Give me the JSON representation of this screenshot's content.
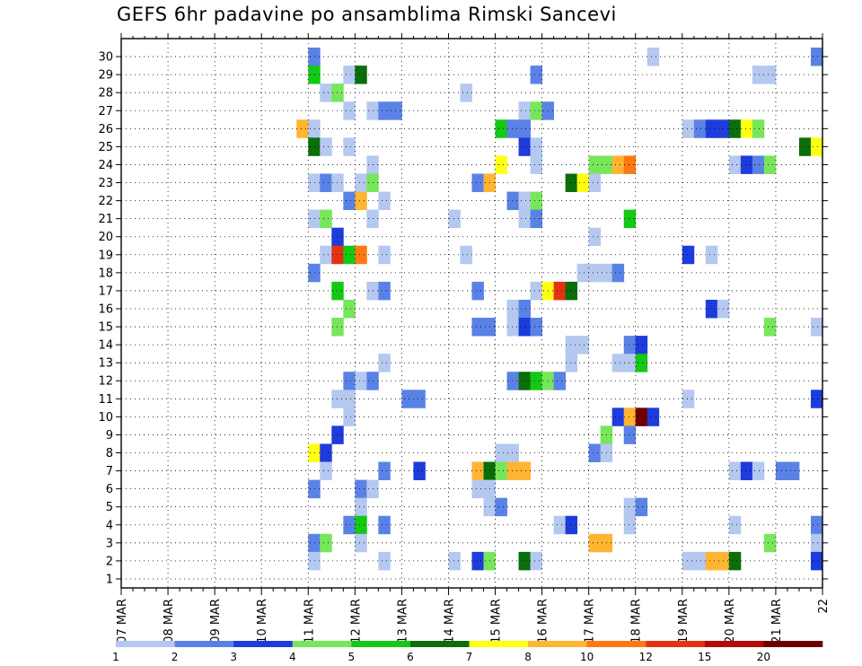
{
  "title": "GEFS 6hr padavine po ansamblima Rimski Sancevi",
  "chart_data": {
    "type": "heatmap",
    "title": "GEFS 6hr padavine po ansamblima Rimski Sancevi",
    "x_tick_labels": [
      "07 MAR",
      "08 MAR",
      "09 MAR",
      "10 MAR",
      "11 MAR",
      "12 MAR",
      "13 MAR",
      "14 MAR",
      "15 MAR",
      "16 MAR",
      "17 MAR",
      "18 MAR",
      "19 MAR",
      "20 MAR",
      "21 MAR",
      "22"
    ],
    "y_tick_labels": [
      "1",
      "2",
      "3",
      "4",
      "5",
      "6",
      "7",
      "8",
      "9",
      "10",
      "11",
      "12",
      "13",
      "14",
      "15",
      "16",
      "17",
      "18",
      "19",
      "20",
      "21",
      "22",
      "23",
      "24",
      "25",
      "26",
      "27",
      "28",
      "29",
      "30"
    ],
    "x_range_days": [
      7,
      22
    ],
    "y_range": [
      1,
      30
    ],
    "time_step_hours": 6,
    "grid": true,
    "legend_position": "bottom",
    "color_levels": {
      "boundaries": [
        "1",
        "2",
        "3",
        "4",
        "5",
        "6",
        "7",
        "8",
        "10",
        "12",
        "15",
        "20"
      ],
      "colors": [
        "#b4c8f0",
        "#5a82e6",
        "#1e3cdc",
        "#78e65a",
        "#14c814",
        "#0a6e0a",
        "#ffff14",
        "#ffb432",
        "#ff7814",
        "#e63214",
        "#b40a0a",
        "#6e0000"
      ]
    },
    "cells": [
      {
        "member": 30,
        "day": 11.0,
        "level": 1
      },
      {
        "member": 30,
        "day": 18.25,
        "level": 0
      },
      {
        "member": 30,
        "day": 21.75,
        "level": 1
      },
      {
        "member": 29,
        "day": 11.0,
        "level": 4
      },
      {
        "member": 29,
        "day": 11.75,
        "level": 0
      },
      {
        "member": 29,
        "day": 12.0,
        "level": 5
      },
      {
        "member": 29,
        "day": 15.75,
        "level": 1
      },
      {
        "member": 29,
        "day": 20.5,
        "level": 0
      },
      {
        "member": 29,
        "day": 20.75,
        "level": 0
      },
      {
        "member": 28,
        "day": 11.25,
        "level": 0
      },
      {
        "member": 28,
        "day": 11.5,
        "level": 3
      },
      {
        "member": 28,
        "day": 14.25,
        "level": 0
      },
      {
        "member": 27,
        "day": 11.75,
        "level": 0
      },
      {
        "member": 27,
        "day": 12.25,
        "level": 0
      },
      {
        "member": 27,
        "day": 12.5,
        "level": 1
      },
      {
        "member": 27,
        "day": 12.75,
        "level": 1
      },
      {
        "member": 27,
        "day": 15.5,
        "level": 0
      },
      {
        "member": 27,
        "day": 15.75,
        "level": 3
      },
      {
        "member": 27,
        "day": 16.0,
        "level": 1
      },
      {
        "member": 26,
        "day": 10.75,
        "level": 7
      },
      {
        "member": 26,
        "day": 11.0,
        "level": 0
      },
      {
        "member": 26,
        "day": 15.0,
        "level": 4
      },
      {
        "member": 26,
        "day": 15.25,
        "level": 1
      },
      {
        "member": 26,
        "day": 15.5,
        "level": 1
      },
      {
        "member": 26,
        "day": 19.0,
        "level": 0
      },
      {
        "member": 26,
        "day": 19.25,
        "level": 1
      },
      {
        "member": 26,
        "day": 19.5,
        "level": 2
      },
      {
        "member": 26,
        "day": 19.75,
        "level": 2
      },
      {
        "member": 26,
        "day": 20.0,
        "level": 5
      },
      {
        "member": 26,
        "day": 20.25,
        "level": 6
      },
      {
        "member": 26,
        "day": 20.5,
        "level": 3
      },
      {
        "member": 25,
        "day": 11.0,
        "level": 5
      },
      {
        "member": 25,
        "day": 11.25,
        "level": 0
      },
      {
        "member": 25,
        "day": 11.75,
        "level": 0
      },
      {
        "member": 25,
        "day": 15.5,
        "level": 2
      },
      {
        "member": 25,
        "day": 15.75,
        "level": 0
      },
      {
        "member": 25,
        "day": 21.5,
        "level": 5
      },
      {
        "member": 25,
        "day": 21.75,
        "level": 6
      },
      {
        "member": 24,
        "day": 12.25,
        "level": 0
      },
      {
        "member": 24,
        "day": 15.0,
        "level": 6
      },
      {
        "member": 24,
        "day": 15.75,
        "level": 0
      },
      {
        "member": 24,
        "day": 17.0,
        "level": 3
      },
      {
        "member": 24,
        "day": 17.25,
        "level": 3
      },
      {
        "member": 24,
        "day": 17.5,
        "level": 7
      },
      {
        "member": 24,
        "day": 17.75,
        "level": 8
      },
      {
        "member": 24,
        "day": 20.0,
        "level": 0
      },
      {
        "member": 24,
        "day": 20.25,
        "level": 2
      },
      {
        "member": 24,
        "day": 20.5,
        "level": 1
      },
      {
        "member": 24,
        "day": 20.75,
        "level": 3
      },
      {
        "member": 23,
        "day": 11.0,
        "level": 0
      },
      {
        "member": 23,
        "day": 11.25,
        "level": 1
      },
      {
        "member": 23,
        "day": 11.5,
        "level": 0
      },
      {
        "member": 23,
        "day": 12.0,
        "level": 0
      },
      {
        "member": 23,
        "day": 12.25,
        "level": 3
      },
      {
        "member": 23,
        "day": 14.5,
        "level": 1
      },
      {
        "member": 23,
        "day": 14.75,
        "level": 7
      },
      {
        "member": 23,
        "day": 16.5,
        "level": 5
      },
      {
        "member": 23,
        "day": 16.75,
        "level": 6
      },
      {
        "member": 23,
        "day": 17.0,
        "level": 0
      },
      {
        "member": 22,
        "day": 11.75,
        "level": 1
      },
      {
        "member": 22,
        "day": 12.0,
        "level": 7
      },
      {
        "member": 22,
        "day": 12.5,
        "level": 0
      },
      {
        "member": 22,
        "day": 15.25,
        "level": 1
      },
      {
        "member": 22,
        "day": 15.5,
        "level": 0
      },
      {
        "member": 22,
        "day": 15.75,
        "level": 3
      },
      {
        "member": 21,
        "day": 11.0,
        "level": 0
      },
      {
        "member": 21,
        "day": 11.25,
        "level": 3
      },
      {
        "member": 21,
        "day": 12.25,
        "level": 0
      },
      {
        "member": 21,
        "day": 14.0,
        "level": 0
      },
      {
        "member": 21,
        "day": 15.5,
        "level": 0
      },
      {
        "member": 21,
        "day": 15.75,
        "level": 1
      },
      {
        "member": 21,
        "day": 17.75,
        "level": 4
      },
      {
        "member": 20,
        "day": 11.5,
        "level": 2
      },
      {
        "member": 20,
        "day": 17.0,
        "level": 0
      },
      {
        "member": 19,
        "day": 11.25,
        "level": 0
      },
      {
        "member": 19,
        "day": 11.5,
        "level": 9
      },
      {
        "member": 19,
        "day": 11.75,
        "level": 4
      },
      {
        "member": 19,
        "day": 12.0,
        "level": 8
      },
      {
        "member": 19,
        "day": 12.5,
        "level": 0
      },
      {
        "member": 19,
        "day": 14.25,
        "level": 0
      },
      {
        "member": 19,
        "day": 19.0,
        "level": 2
      },
      {
        "member": 19,
        "day": 19.5,
        "level": 0
      },
      {
        "member": 18,
        "day": 11.0,
        "level": 1
      },
      {
        "member": 18,
        "day": 16.75,
        "level": 0
      },
      {
        "member": 18,
        "day": 17.0,
        "level": 0
      },
      {
        "member": 18,
        "day": 17.25,
        "level": 0
      },
      {
        "member": 18,
        "day": 17.5,
        "level": 1
      },
      {
        "member": 17,
        "day": 11.5,
        "level": 4
      },
      {
        "member": 17,
        "day": 12.25,
        "level": 0
      },
      {
        "member": 17,
        "day": 12.5,
        "level": 1
      },
      {
        "member": 17,
        "day": 14.5,
        "level": 1
      },
      {
        "member": 17,
        "day": 15.75,
        "level": 0
      },
      {
        "member": 17,
        "day": 16.0,
        "level": 6
      },
      {
        "member": 17,
        "day": 16.25,
        "level": 9
      },
      {
        "member": 17,
        "day": 16.5,
        "level": 5
      },
      {
        "member": 16,
        "day": 11.75,
        "level": 3
      },
      {
        "member": 16,
        "day": 15.25,
        "level": 0
      },
      {
        "member": 16,
        "day": 15.5,
        "level": 1
      },
      {
        "member": 16,
        "day": 19.5,
        "level": 2
      },
      {
        "member": 16,
        "day": 19.75,
        "level": 0
      },
      {
        "member": 15,
        "day": 11.5,
        "level": 3
      },
      {
        "member": 15,
        "day": 14.5,
        "level": 1
      },
      {
        "member": 15,
        "day": 14.75,
        "level": 1
      },
      {
        "member": 15,
        "day": 15.25,
        "level": 0
      },
      {
        "member": 15,
        "day": 15.5,
        "level": 2
      },
      {
        "member": 15,
        "day": 15.75,
        "level": 1
      },
      {
        "member": 15,
        "day": 20.75,
        "level": 3
      },
      {
        "member": 15,
        "day": 21.75,
        "level": 0
      },
      {
        "member": 14,
        "day": 16.5,
        "level": 0
      },
      {
        "member": 14,
        "day": 16.75,
        "level": 0
      },
      {
        "member": 14,
        "day": 17.75,
        "level": 1
      },
      {
        "member": 14,
        "day": 18.0,
        "level": 2
      },
      {
        "member": 13,
        "day": 12.5,
        "level": 0
      },
      {
        "member": 13,
        "day": 16.5,
        "level": 0
      },
      {
        "member": 13,
        "day": 17.5,
        "level": 0
      },
      {
        "member": 13,
        "day": 17.75,
        "level": 0
      },
      {
        "member": 13,
        "day": 18.0,
        "level": 4
      },
      {
        "member": 12,
        "day": 11.75,
        "level": 1
      },
      {
        "member": 12,
        "day": 12.0,
        "level": 0
      },
      {
        "member": 12,
        "day": 12.25,
        "level": 1
      },
      {
        "member": 12,
        "day": 15.25,
        "level": 1
      },
      {
        "member": 12,
        "day": 15.5,
        "level": 5
      },
      {
        "member": 12,
        "day": 15.75,
        "level": 4
      },
      {
        "member": 12,
        "day": 16.0,
        "level": 3
      },
      {
        "member": 12,
        "day": 16.25,
        "level": 1
      },
      {
        "member": 11,
        "day": 11.5,
        "level": 0
      },
      {
        "member": 11,
        "day": 11.75,
        "level": 0
      },
      {
        "member": 11,
        "day": 13.0,
        "level": 1
      },
      {
        "member": 11,
        "day": 13.25,
        "level": 1
      },
      {
        "member": 11,
        "day": 19.0,
        "level": 0
      },
      {
        "member": 11,
        "day": 21.75,
        "level": 2
      },
      {
        "member": 10,
        "day": 11.75,
        "level": 0
      },
      {
        "member": 10,
        "day": 17.5,
        "level": 2
      },
      {
        "member": 10,
        "day": 17.75,
        "level": 7
      },
      {
        "member": 10,
        "day": 18.0,
        "level": 11
      },
      {
        "member": 10,
        "day": 18.25,
        "level": 2
      },
      {
        "member": 9,
        "day": 11.5,
        "level": 2
      },
      {
        "member": 9,
        "day": 17.25,
        "level": 3
      },
      {
        "member": 9,
        "day": 17.75,
        "level": 1
      },
      {
        "member": 8,
        "day": 11.0,
        "level": 6
      },
      {
        "member": 8,
        "day": 11.25,
        "level": 2
      },
      {
        "member": 8,
        "day": 15.0,
        "level": 0
      },
      {
        "member": 8,
        "day": 15.25,
        "level": 0
      },
      {
        "member": 8,
        "day": 17.0,
        "level": 1
      },
      {
        "member": 8,
        "day": 17.25,
        "level": 0
      },
      {
        "member": 7,
        "day": 11.25,
        "level": 0
      },
      {
        "member": 7,
        "day": 12.5,
        "level": 1
      },
      {
        "member": 7,
        "day": 13.25,
        "level": 2
      },
      {
        "member": 7,
        "day": 14.5,
        "level": 7
      },
      {
        "member": 7,
        "day": 14.75,
        "level": 5
      },
      {
        "member": 7,
        "day": 15.0,
        "level": 3
      },
      {
        "member": 7,
        "day": 15.25,
        "level": 7
      },
      {
        "member": 7,
        "day": 15.5,
        "level": 7
      },
      {
        "member": 7,
        "day": 20.0,
        "level": 0
      },
      {
        "member": 7,
        "day": 20.25,
        "level": 2
      },
      {
        "member": 7,
        "day": 20.5,
        "level": 0
      },
      {
        "member": 7,
        "day": 21.0,
        "level": 1
      },
      {
        "member": 7,
        "day": 21.25,
        "level": 1
      },
      {
        "member": 6,
        "day": 11.0,
        "level": 1
      },
      {
        "member": 6,
        "day": 12.0,
        "level": 1
      },
      {
        "member": 6,
        "day": 12.25,
        "level": 0
      },
      {
        "member": 6,
        "day": 14.5,
        "level": 0
      },
      {
        "member": 6,
        "day": 14.75,
        "level": 0
      },
      {
        "member": 5,
        "day": 12.0,
        "level": 0
      },
      {
        "member": 5,
        "day": 14.75,
        "level": 0
      },
      {
        "member": 5,
        "day": 15.0,
        "level": 1
      },
      {
        "member": 5,
        "day": 17.75,
        "level": 0
      },
      {
        "member": 5,
        "day": 18.0,
        "level": 1
      },
      {
        "member": 4,
        "day": 11.75,
        "level": 1
      },
      {
        "member": 4,
        "day": 12.0,
        "level": 4
      },
      {
        "member": 4,
        "day": 12.5,
        "level": 1
      },
      {
        "member": 4,
        "day": 16.25,
        "level": 0
      },
      {
        "member": 4,
        "day": 16.5,
        "level": 2
      },
      {
        "member": 4,
        "day": 17.75,
        "level": 0
      },
      {
        "member": 4,
        "day": 20.0,
        "level": 0
      },
      {
        "member": 4,
        "day": 21.75,
        "level": 1
      },
      {
        "member": 3,
        "day": 11.0,
        "level": 1
      },
      {
        "member": 3,
        "day": 11.25,
        "level": 3
      },
      {
        "member": 3,
        "day": 12.0,
        "level": 0
      },
      {
        "member": 3,
        "day": 17.0,
        "level": 7
      },
      {
        "member": 3,
        "day": 17.25,
        "level": 7
      },
      {
        "member": 3,
        "day": 20.75,
        "level": 3
      },
      {
        "member": 3,
        "day": 21.75,
        "level": 0
      },
      {
        "member": 2,
        "day": 11.0,
        "level": 0
      },
      {
        "member": 2,
        "day": 12.5,
        "level": 0
      },
      {
        "member": 2,
        "day": 14.0,
        "level": 0
      },
      {
        "member": 2,
        "day": 14.5,
        "level": 2
      },
      {
        "member": 2,
        "day": 14.75,
        "level": 3
      },
      {
        "member": 2,
        "day": 15.5,
        "level": 5
      },
      {
        "member": 2,
        "day": 15.75,
        "level": 0
      },
      {
        "member": 2,
        "day": 19.0,
        "level": 0
      },
      {
        "member": 2,
        "day": 19.25,
        "level": 0
      },
      {
        "member": 2,
        "day": 19.5,
        "level": 7
      },
      {
        "member": 2,
        "day": 19.75,
        "level": 7
      },
      {
        "member": 2,
        "day": 20.0,
        "level": 5
      },
      {
        "member": 2,
        "day": 21.75,
        "level": 2
      }
    ]
  }
}
